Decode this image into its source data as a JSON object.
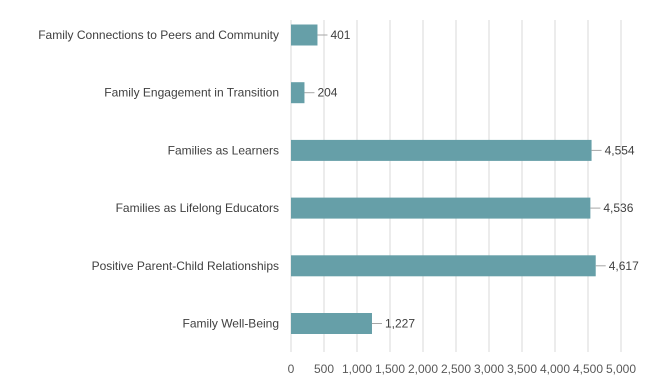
{
  "colors": {
    "bar": "#669fa8",
    "grid": "#d9d9d9",
    "text": "#404040"
  },
  "chart_data": {
    "type": "bar",
    "orientation": "horizontal",
    "categories": [
      "Family Connections to Peers and Community",
      "Family Engagement in Transition",
      "Families as Learners",
      "Families as Lifelong Educators",
      "Positive Parent-Child Relationships",
      "Family Well-Being"
    ],
    "values": [
      401,
      204,
      4554,
      4536,
      4617,
      1227
    ],
    "value_labels": [
      "401",
      "204",
      "4,554",
      "4,536",
      "4,617",
      "1,227"
    ],
    "xlim": [
      0,
      5000
    ],
    "ticks": [
      0,
      500,
      1000,
      1500,
      2000,
      2500,
      3000,
      3500,
      4000,
      4500,
      5000
    ],
    "tick_labels": [
      "0",
      "500",
      "1,000",
      "1,500",
      "2,000",
      "2,500",
      "3,000",
      "3,500",
      "4,000",
      "4,500",
      "5,000"
    ],
    "grid": "vertical",
    "legend": "none",
    "title": "",
    "xlabel": "",
    "ylabel": ""
  }
}
